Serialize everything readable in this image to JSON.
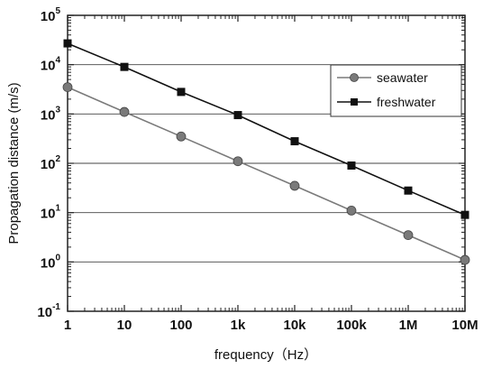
{
  "chart_data": {
    "type": "line",
    "xscale": "log",
    "yscale": "log",
    "xlim": [
      1,
      10000000
    ],
    "ylim": [
      0.1,
      100000
    ],
    "grid": "horizontal",
    "legend_position": "top-right",
    "xlabel": "frequency（Hz）",
    "ylabel": "Propagation distance (m/s)",
    "x": [
      1,
      10,
      100,
      1000,
      10000,
      100000,
      1000000,
      10000000
    ],
    "x_tick_labels": [
      "1",
      "10",
      "100",
      "1k",
      "10k",
      "100k",
      "1M",
      "10M"
    ],
    "y_ticks": [
      {
        "base": "10",
        "exp": "5"
      },
      {
        "base": "10",
        "exp": "4"
      },
      {
        "base": "10",
        "exp": "3"
      },
      {
        "base": "10",
        "exp": "2"
      },
      {
        "base": "10",
        "exp": "1"
      },
      {
        "base": "10",
        "exp": "0"
      },
      {
        "base": "10",
        "exp": "-1"
      }
    ],
    "series": [
      {
        "name": "seawater",
        "marker": "circle",
        "color": "#7a7a7a",
        "values": [
          3500,
          1100,
          350,
          110,
          35,
          11,
          3.5,
          1.1
        ]
      },
      {
        "name": "freshwater",
        "marker": "square",
        "color": "#111111",
        "values": [
          27000,
          9000,
          2800,
          950,
          280,
          90,
          28,
          9
        ]
      }
    ]
  }
}
